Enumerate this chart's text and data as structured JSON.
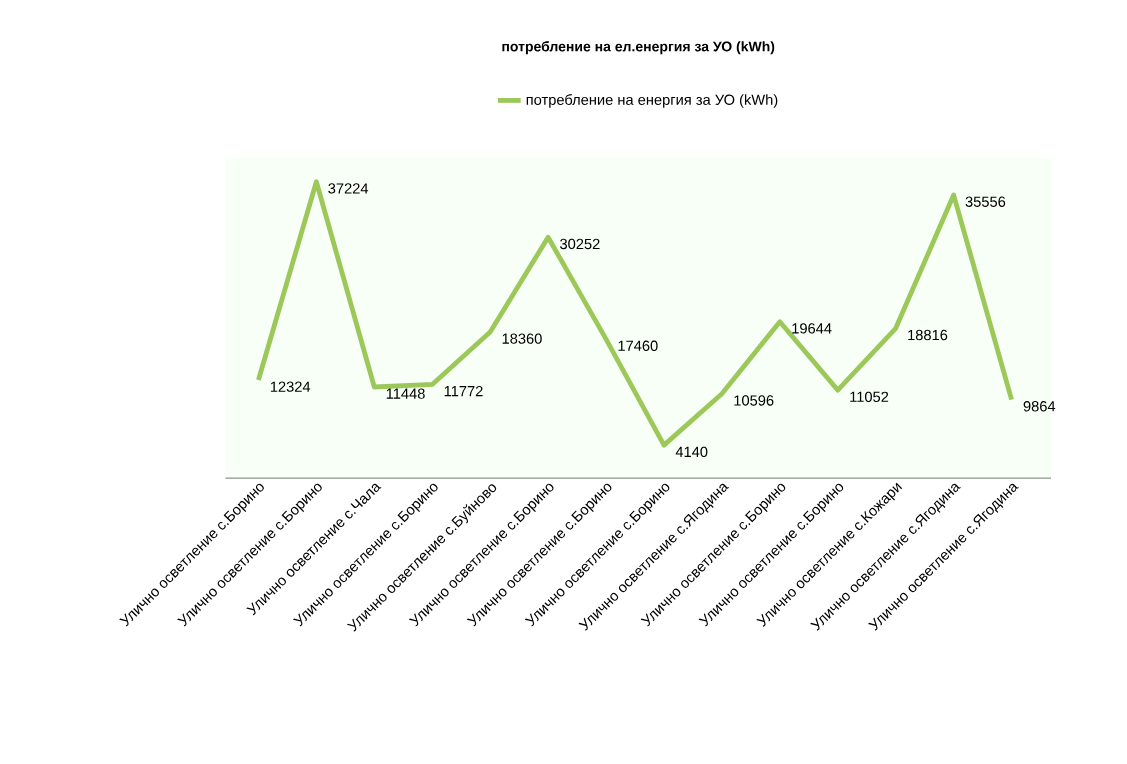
{
  "chart_data": {
    "type": "line",
    "title": "потребление на ел.енергия за УО (kWh)",
    "categories": [
      "Улично осветление с.Борино",
      "Улично осветление с.Борино",
      "Улично осветление с.Чала",
      "Улично осветление с.Борино",
      "Улично осветление с.Буйново",
      "Улично осветление с.Борино",
      "Улично осветление с.Борино",
      "Улично осветление с.Борино",
      "Улично осветление с.Ягодина",
      "Улично осветление с.Борино",
      "Улично осветление с.Борино",
      "Улично осветление с.Кожари",
      "Улично осветление с.Ягодина",
      "Улично осветление с.Ягодина"
    ],
    "series": [
      {
        "name": "потребление на енергия за УО (kWh)",
        "color": "#9cc85a",
        "values": [
          12324,
          37224,
          11448,
          11772,
          18360,
          30252,
          17460,
          4140,
          10596,
          19644,
          11052,
          18816,
          35556,
          9864
        ]
      }
    ],
    "data_labels": true,
    "legend": "top",
    "marker": "none",
    "line_style": "solid",
    "grid": false,
    "tick_labels": "x"
  }
}
